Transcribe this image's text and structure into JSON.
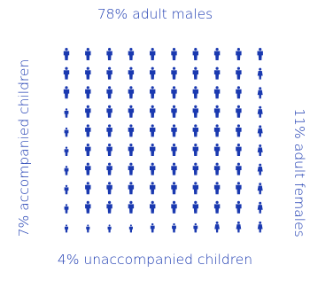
{
  "chart_data": {
    "type": "pictogram",
    "categories": [
      "adult males",
      "adult females",
      "accompanied children",
      "unaccompanied children"
    ],
    "values": [
      78,
      11,
      7,
      4
    ],
    "units": "%",
    "labels": {
      "top": "78% adult males",
      "right": "11% adult females",
      "left": "7% accompanied children",
      "bottom": "4% unaccompanied children"
    },
    "grid": {
      "rows": 10,
      "cols": 10
    }
  },
  "colors": {
    "accent": "#1a39b0"
  },
  "icons": [
    "person-icon"
  ]
}
